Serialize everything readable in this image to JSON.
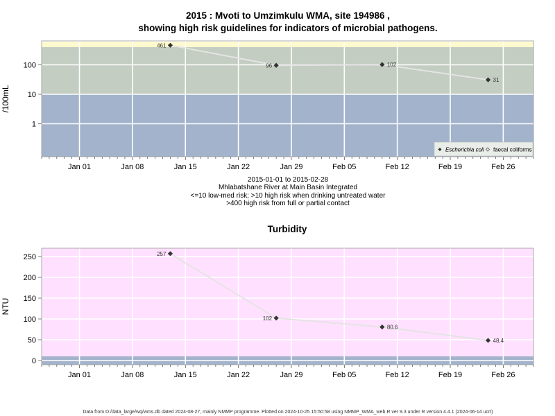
{
  "chart_data": [
    {
      "type": "line",
      "title_line1": "2015 : Mvoti to Umzimkulu WMA, site 194986 ,",
      "title_line2": "showing high risk guidelines for indicators of microbial pathogens.",
      "ylabel": "/100mL",
      "y_scale": "log",
      "y_tick_labels": [
        "1",
        "10",
        "100"
      ],
      "x_tick_labels": [
        "Jan 01",
        "Jan 08",
        "Jan 15",
        "Jan 22",
        "Jan 29",
        "Feb 05",
        "Feb 12",
        "Feb 19",
        "Feb 26"
      ],
      "risk_bands": [
        {
          "from": 0.05,
          "to": 10,
          "color": "#a3b3cc"
        },
        {
          "from": 10,
          "to": 400,
          "color": "#c3cdc1"
        },
        {
          "from": 400,
          "to": 600,
          "color": "#fffacd"
        }
      ],
      "series": [
        {
          "name": "Escherichia coli",
          "x": [
            "2015-01-13",
            "2015-01-27",
            "2015-02-10",
            "2015-02-24"
          ],
          "values": [
            461,
            96,
            102,
            31
          ],
          "labels": [
            "461",
            "96",
            "102",
            "31"
          ]
        }
      ],
      "legend": {
        "position": "bottom-right",
        "items": [
          "Escherichia coli",
          "faecal coliforms"
        ]
      },
      "caption_lines": [
        "2015-01-01 to 2015-02-28",
        "Mhlabatshane River at Main Basin Integrated",
        "<=10 low-med risk; >10 high risk when drinking untreated water",
        ">400 high risk from full or partial contact"
      ]
    },
    {
      "type": "line",
      "title": "Turbidity",
      "ylabel": "NTU",
      "ylim": [
        -10,
        270
      ],
      "y_tick_labels": [
        "0",
        "50",
        "100",
        "150",
        "200",
        "250"
      ],
      "x_tick_labels": [
        "Jan 01",
        "Jan 08",
        "Jan 15",
        "Jan 22",
        "Jan 29",
        "Feb 05",
        "Feb 12",
        "Feb 19",
        "Feb 26"
      ],
      "risk_bands": [
        {
          "from": -10,
          "to": 10,
          "color": "#a3b3cc"
        },
        {
          "from": 10,
          "to": 270,
          "color": "#ffe0ff"
        }
      ],
      "series": [
        {
          "name": "Turbidity",
          "x": [
            "2015-01-13",
            "2015-01-27",
            "2015-02-10",
            "2015-02-24"
          ],
          "values": [
            257,
            102,
            80.6,
            48.4
          ],
          "labels": [
            "257",
            "102",
            "80.6",
            "48.4"
          ]
        }
      ]
    }
  ],
  "footer": "Data from D:/data_large/wq/wms.db dated 2024-08-27, mainly NMMP programme. Plotted on 2024-10-25 15:50:58 using NMMP_WMA_web.R ver 9.3 under R version 4.4.1 (2024-06-14 ucrt)"
}
